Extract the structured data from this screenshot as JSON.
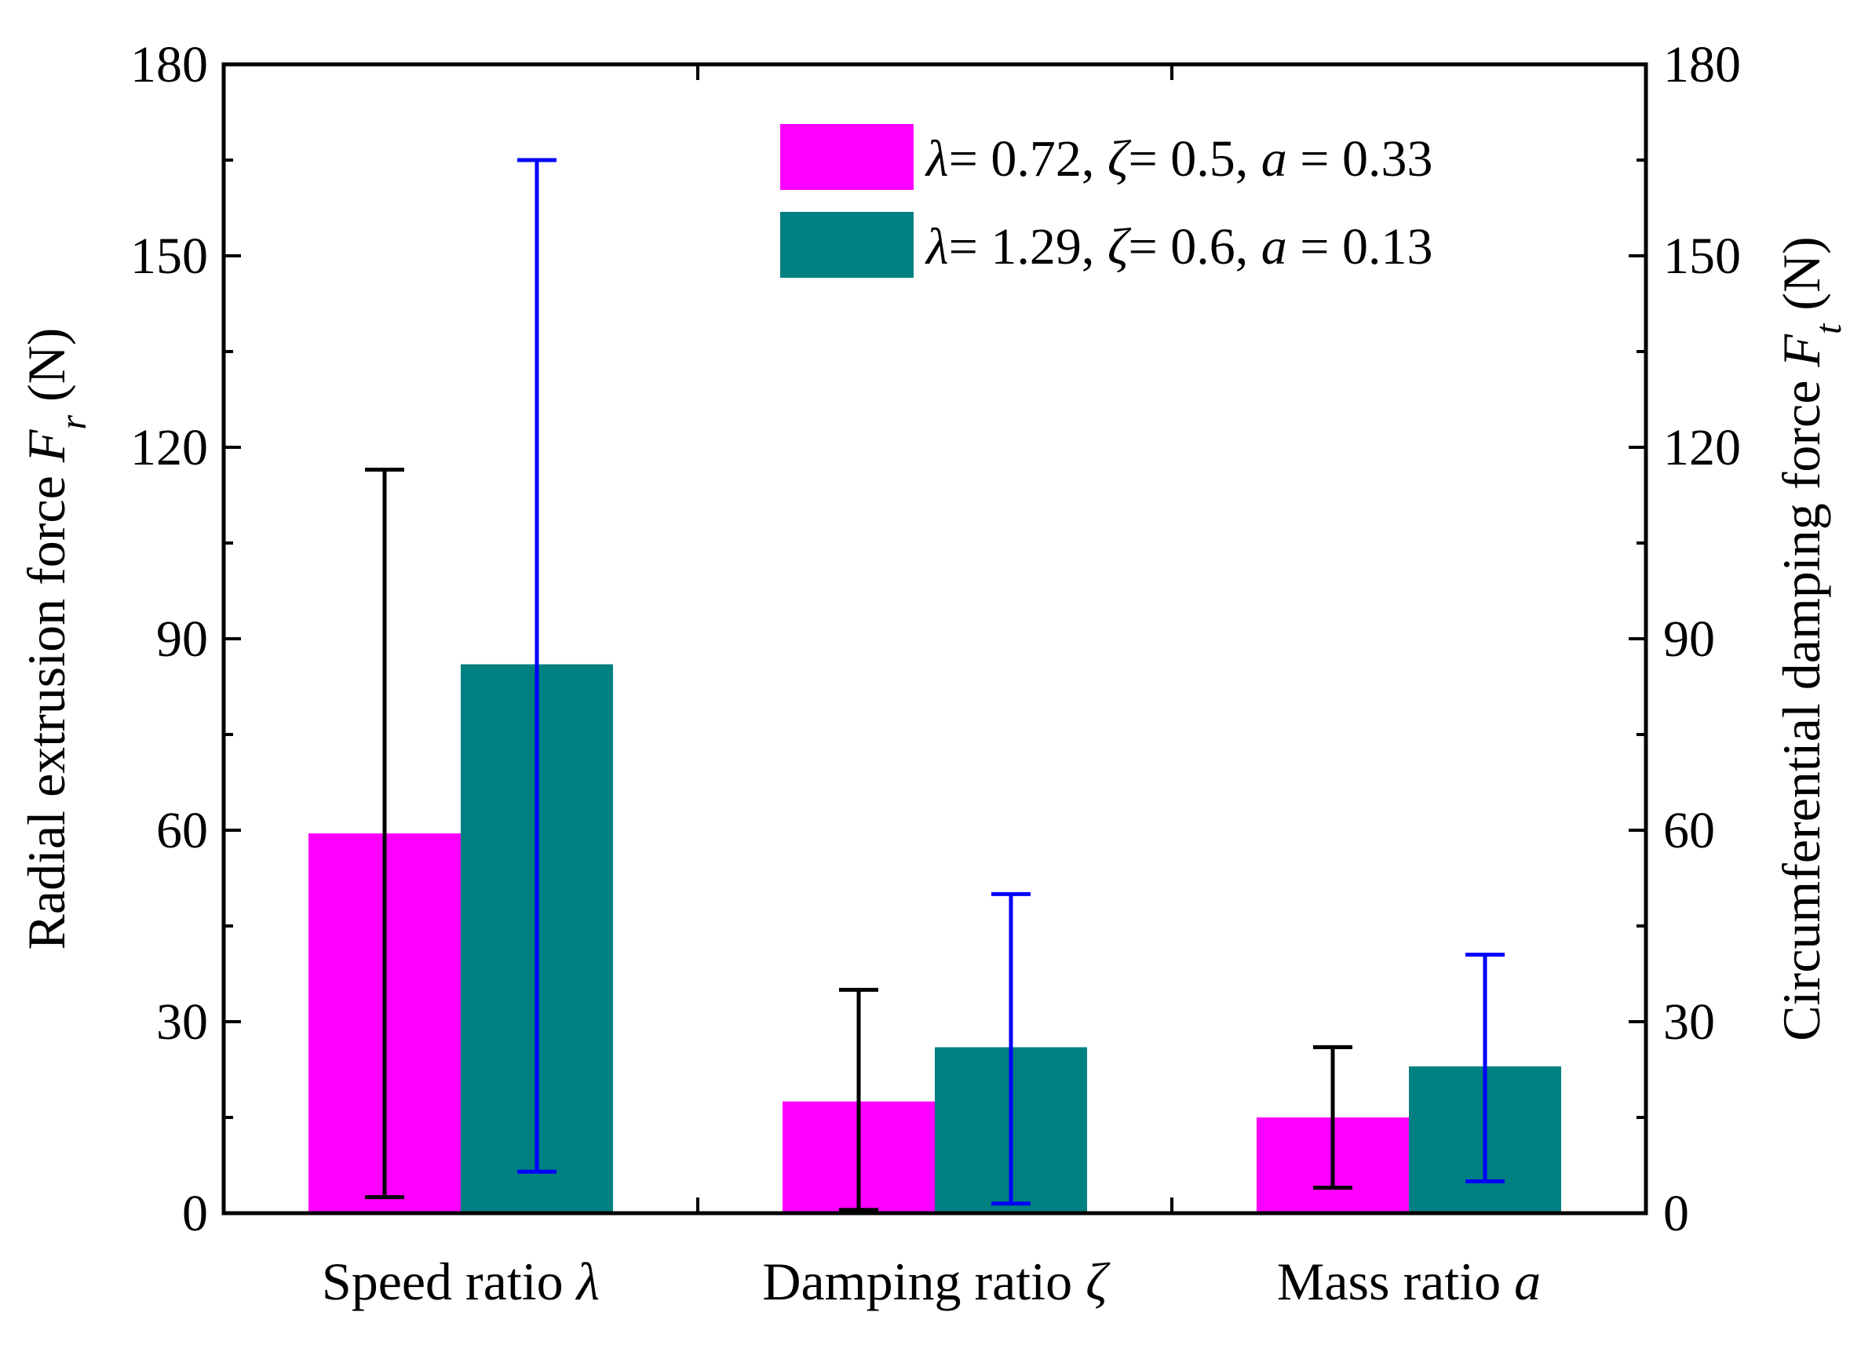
{
  "chart_data": {
    "type": "bar",
    "categories": [
      "Speed ratio λ",
      "Damping ratio ζ",
      "Mass ratio a"
    ],
    "category_parts": [
      {
        "text": "Speed ratio ",
        "symbol": "λ"
      },
      {
        "text": "Damping ratio ",
        "symbol": "ζ"
      },
      {
        "text": "Mass ratio ",
        "symbol": "a"
      }
    ],
    "series": [
      {
        "name": "λ= 0.72, ζ= 0.5, a = 0.33",
        "name_parts": [
          "λ",
          "= 0.72, ",
          "ζ",
          "= 0.5, ",
          "a",
          " = 0.33"
        ],
        "color": "#ff00ff",
        "values": [
          59.5,
          17.5,
          15.0
        ],
        "error_low": [
          2.5,
          0.5,
          4.0
        ],
        "error_high": [
          116.5,
          35.0,
          26.0
        ],
        "error_color": "#000000"
      },
      {
        "name": "λ= 1.29, ζ= 0.6, a = 0.13",
        "name_parts": [
          "λ",
          "= 1.29, ",
          "ζ",
          "= 0.6, ",
          "a",
          " = 0.13"
        ],
        "color": "#008080",
        "values": [
          86.0,
          26.0,
          23.0
        ],
        "error_low": [
          6.5,
          1.5,
          5.0
        ],
        "error_high": [
          165.0,
          50.0,
          40.5
        ],
        "error_color": "#0000ff"
      }
    ],
    "ylabel_left": {
      "text": "Radial extrusion force ",
      "symbol": "F",
      "sub": "r",
      "unit": " (N)"
    },
    "ylabel_right": {
      "text": "Circumferential damping force ",
      "symbol": "F",
      "sub": "t",
      "unit": " (N)"
    },
    "ylim": [
      0,
      180
    ],
    "yticks": [
      0,
      30,
      60,
      90,
      120,
      150,
      180
    ],
    "grid": false,
    "legend_position": "top-right"
  }
}
